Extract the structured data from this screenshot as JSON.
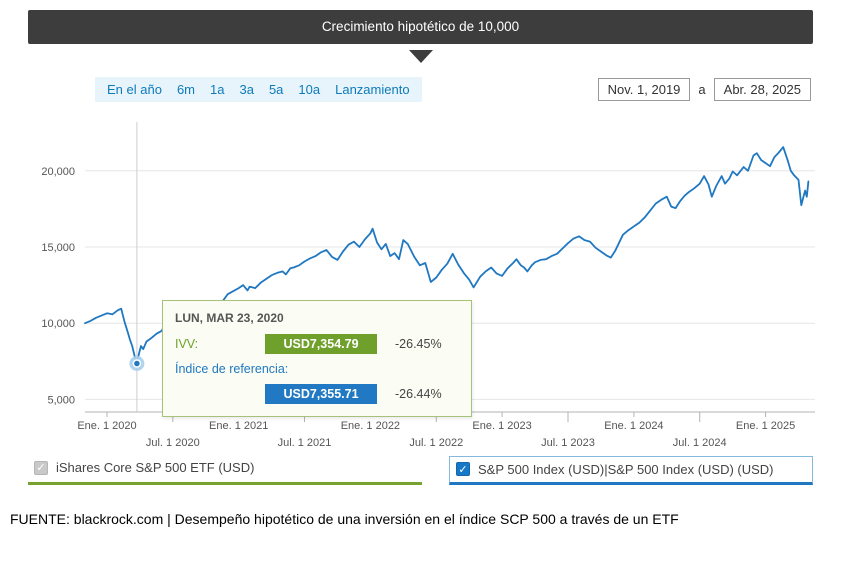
{
  "header": {
    "title": "Crecimiento hipotético de 10,000"
  },
  "toolbar": {
    "ranges": [
      "En el año",
      "6m",
      "1a",
      "3a",
      "5a",
      "10a",
      "Lanzamiento"
    ],
    "date_from": "Nov. 1, 2019",
    "date_separator": "a",
    "date_to": "Abr. 28, 2025"
  },
  "tooltip": {
    "date": "LUN, MAR 23, 2020",
    "series": [
      {
        "label": "IVV:",
        "value": "USD7,354.79",
        "change": "-26.45%",
        "color": "#6fa02c"
      },
      {
        "label": "Índice de referencia:",
        "value": "USD7,355.71",
        "change": "-26.44%",
        "color": "#2079c2"
      }
    ]
  },
  "legend": {
    "check_glyph": "✓",
    "items": [
      {
        "label": "iShares Core S&P 500 ETF (USD)",
        "color": "#78a22f",
        "checked": true,
        "disabled": true
      },
      {
        "label": "S&P 500 Index (USD)|S&P 500 Index (USD) (USD)",
        "color": "#1f78c1",
        "checked": true,
        "disabled": false
      }
    ]
  },
  "footer": {
    "text": "FUENTE: blackrock.com | Desempeño hipotético de una inversión en el índice SCP 500 a través de un ETF"
  },
  "chart_data": {
    "type": "line",
    "title": "Crecimiento hipotético de 10,000",
    "x_unit": "months since 2019-11-01",
    "xlim": [
      0,
      66.5
    ],
    "ylim": [
      4500,
      23200
    ],
    "grid": true,
    "legend_position": "bottom",
    "yticks": [
      5000,
      10000,
      15000,
      20000
    ],
    "ytick_labels": [
      "5,000",
      "10,000",
      "15,000",
      "20,000"
    ],
    "xticks": [
      {
        "m": 2,
        "label": "Ene. 1 2020",
        "row": "top"
      },
      {
        "m": 8,
        "label": "Jul. 1 2020",
        "row": "bottom"
      },
      {
        "m": 14,
        "label": "Ene. 1 2021",
        "row": "top"
      },
      {
        "m": 20,
        "label": "Jul. 1 2021",
        "row": "bottom"
      },
      {
        "m": 26,
        "label": "Ene. 1 2022",
        "row": "top"
      },
      {
        "m": 32,
        "label": "Jul. 1 2022",
        "row": "bottom"
      },
      {
        "m": 38,
        "label": "Ene. 1 2023",
        "row": "top"
      },
      {
        "m": 44,
        "label": "Jul. 1 2023",
        "row": "bottom"
      },
      {
        "m": 50,
        "label": "Ene. 1 2024",
        "row": "top"
      },
      {
        "m": 56,
        "label": "Jul. 1 2024",
        "row": "bottom"
      },
      {
        "m": 62,
        "label": "Ene. 1 2025",
        "row": "top"
      }
    ],
    "marker": {
      "m": 4.73,
      "value": 7355,
      "date_label": "LUN, MAR 23, 2020"
    },
    "series": [
      {
        "name": "S&P 500 Index (USD)",
        "color": "#1f78c1",
        "points": [
          [
            0,
            10000
          ],
          [
            0.5,
            10150
          ],
          [
            1,
            10350
          ],
          [
            1.5,
            10500
          ],
          [
            2,
            10650
          ],
          [
            2.5,
            10580
          ],
          [
            3,
            10850
          ],
          [
            3.3,
            10950
          ],
          [
            3.6,
            10100
          ],
          [
            3.9,
            9400
          ],
          [
            4.1,
            8900
          ],
          [
            4.3,
            8500
          ],
          [
            4.5,
            7900
          ],
          [
            4.73,
            7355
          ],
          [
            4.9,
            7950
          ],
          [
            5.1,
            8500
          ],
          [
            5.3,
            8300
          ],
          [
            5.6,
            8800
          ],
          [
            6,
            9000
          ],
          [
            6.5,
            9300
          ],
          [
            7,
            9500
          ],
          [
            7.3,
            9950
          ],
          [
            7.6,
            9700
          ],
          [
            8,
            9950
          ],
          [
            8.5,
            10300
          ],
          [
            9,
            10550
          ],
          [
            9.5,
            10900
          ],
          [
            10,
            11250
          ],
          [
            10.3,
            10700
          ],
          [
            10.7,
            10950
          ],
          [
            11,
            10800
          ],
          [
            11.4,
            11000
          ],
          [
            11.8,
            10450
          ],
          [
            12,
            10700
          ],
          [
            12.5,
            11400
          ],
          [
            13,
            11900
          ],
          [
            13.5,
            12100
          ],
          [
            14,
            12300
          ],
          [
            14.4,
            12500
          ],
          [
            14.8,
            12150
          ],
          [
            15,
            12400
          ],
          [
            15.5,
            12300
          ],
          [
            16,
            12650
          ],
          [
            16.5,
            12900
          ],
          [
            17,
            13150
          ],
          [
            17.5,
            13300
          ],
          [
            18,
            13400
          ],
          [
            18.3,
            13200
          ],
          [
            18.7,
            13600
          ],
          [
            19,
            13650
          ],
          [
            19.5,
            13800
          ],
          [
            20,
            14050
          ],
          [
            20.5,
            14250
          ],
          [
            21,
            14400
          ],
          [
            21.5,
            14650
          ],
          [
            22,
            14800
          ],
          [
            22.5,
            14350
          ],
          [
            23,
            14150
          ],
          [
            23.5,
            14700
          ],
          [
            24,
            15150
          ],
          [
            24.5,
            15350
          ],
          [
            25,
            15000
          ],
          [
            25.5,
            15500
          ],
          [
            26,
            15900
          ],
          [
            26.2,
            16200
          ],
          [
            26.6,
            15300
          ],
          [
            27,
            14850
          ],
          [
            27.4,
            15200
          ],
          [
            27.8,
            14400
          ],
          [
            28.2,
            14600
          ],
          [
            28.6,
            14200
          ],
          [
            29,
            15450
          ],
          [
            29.4,
            15200
          ],
          [
            30,
            14350
          ],
          [
            30.5,
            13800
          ],
          [
            31,
            13950
          ],
          [
            31.5,
            12700
          ],
          [
            32,
            13000
          ],
          [
            32.5,
            13500
          ],
          [
            33,
            13900
          ],
          [
            33.5,
            14550
          ],
          [
            34,
            13850
          ],
          [
            34.5,
            13300
          ],
          [
            35,
            12850
          ],
          [
            35.4,
            12350
          ],
          [
            36,
            13050
          ],
          [
            36.5,
            13400
          ],
          [
            37,
            13650
          ],
          [
            37.5,
            13250
          ],
          [
            38,
            13100
          ],
          [
            38.5,
            13600
          ],
          [
            39,
            13950
          ],
          [
            39.3,
            14200
          ],
          [
            39.7,
            13800
          ],
          [
            40,
            13650
          ],
          [
            40.3,
            13400
          ],
          [
            40.7,
            13800
          ],
          [
            41,
            14000
          ],
          [
            41.5,
            14150
          ],
          [
            42,
            14200
          ],
          [
            42.5,
            14400
          ],
          [
            43,
            14550
          ],
          [
            43.5,
            14900
          ],
          [
            44,
            15250
          ],
          [
            44.5,
            15550
          ],
          [
            45,
            15700
          ],
          [
            45.5,
            15450
          ],
          [
            46,
            15350
          ],
          [
            46.5,
            14950
          ],
          [
            47,
            14700
          ],
          [
            47.5,
            14450
          ],
          [
            47.9,
            14300
          ],
          [
            48.3,
            14750
          ],
          [
            49,
            15800
          ],
          [
            49.5,
            16100
          ],
          [
            50,
            16350
          ],
          [
            50.5,
            16600
          ],
          [
            51,
            16950
          ],
          [
            51.5,
            17400
          ],
          [
            52,
            17850
          ],
          [
            52.5,
            18100
          ],
          [
            53,
            18300
          ],
          [
            53.4,
            17650
          ],
          [
            53.8,
            17550
          ],
          [
            54.2,
            18000
          ],
          [
            54.6,
            18350
          ],
          [
            55,
            18600
          ],
          [
            55.5,
            18850
          ],
          [
            56,
            19150
          ],
          [
            56.4,
            19650
          ],
          [
            56.8,
            19100
          ],
          [
            57.1,
            18300
          ],
          [
            57.5,
            19000
          ],
          [
            58,
            19650
          ],
          [
            58.3,
            19150
          ],
          [
            58.7,
            19500
          ],
          [
            59,
            19950
          ],
          [
            59.4,
            19700
          ],
          [
            60,
            20250
          ],
          [
            60.4,
            20000
          ],
          [
            60.9,
            21000
          ],
          [
            61.2,
            21150
          ],
          [
            61.6,
            20700
          ],
          [
            62,
            20500
          ],
          [
            62.4,
            20300
          ],
          [
            62.8,
            20900
          ],
          [
            63.2,
            21200
          ],
          [
            63.6,
            21550
          ],
          [
            64,
            20700
          ],
          [
            64.3,
            20000
          ],
          [
            64.6,
            19700
          ],
          [
            65,
            19400
          ],
          [
            65.25,
            17750
          ],
          [
            65.45,
            18300
          ],
          [
            65.6,
            18700
          ],
          [
            65.75,
            18300
          ],
          [
            65.9,
            19300
          ]
        ]
      }
    ]
  }
}
